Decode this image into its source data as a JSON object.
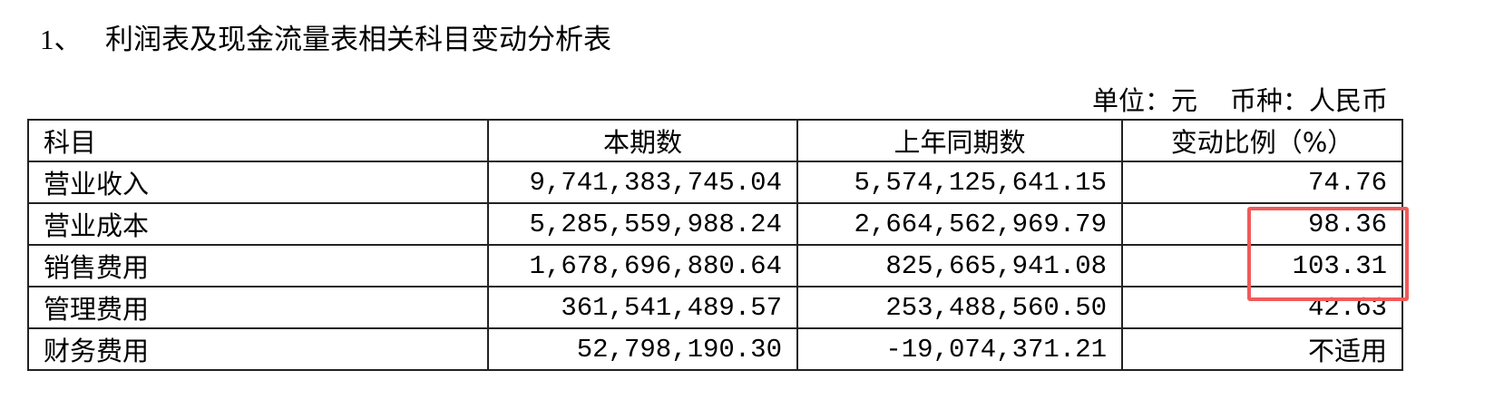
{
  "title": {
    "number": "1、",
    "text": "利润表及现金流量表相关科目变动分析表"
  },
  "unit": {
    "unit_label": "单位：元",
    "currency_label": "币种：人民币"
  },
  "table": {
    "headers": [
      "科目",
      "本期数",
      "上年同期数",
      "变动比例（%）"
    ],
    "rows": [
      [
        "营业收入",
        "9,741,383,745.04",
        "5,574,125,641.15",
        "74.76"
      ],
      [
        "营业成本",
        "5,285,559,988.24",
        "2,664,562,969.79",
        "98.36"
      ],
      [
        "销售费用",
        "1,678,696,880.64",
        "825,665,941.08",
        "103.31"
      ],
      [
        "管理费用",
        "361,541,489.57",
        "253,488,560.50",
        "42.63"
      ],
      [
        "财务费用",
        "52,798,190.30",
        "-19,074,371.21",
        "不适用"
      ]
    ]
  },
  "highlight": {
    "color": "#f25a5a",
    "rows": [
      "营业成本",
      "销售费用"
    ],
    "column": "变动比例（%）"
  }
}
